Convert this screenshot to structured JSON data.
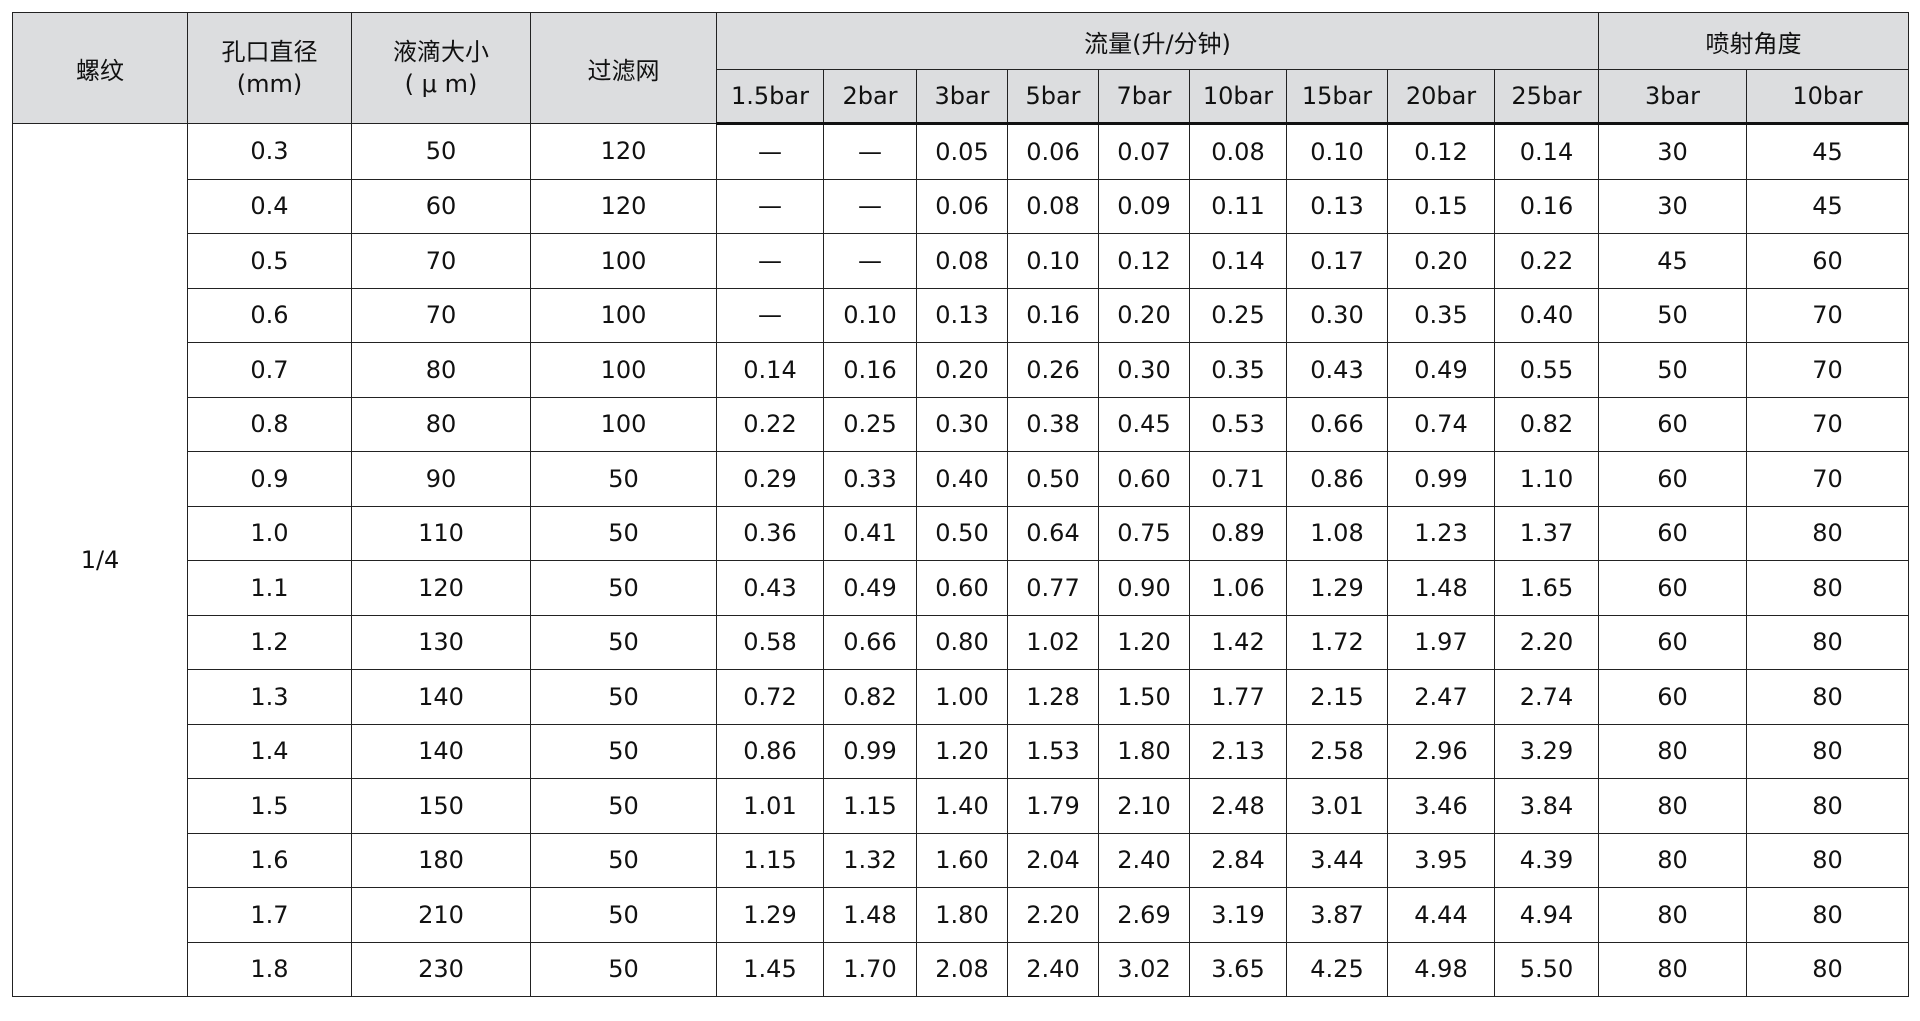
{
  "header": {
    "thread": "螺纹",
    "orifice": "孔口直径",
    "orifice_unit": "(mm)",
    "droplet": "液滴大小",
    "droplet_unit": "( μ m)",
    "filter": "过滤网",
    "flow": "流量(升/分钟)",
    "angle": "喷射角度",
    "flow_pressures": [
      "1.5bar",
      "2bar",
      "3bar",
      "5bar",
      "7bar",
      "10bar",
      "15bar",
      "20bar",
      "25bar"
    ],
    "angle_pressures": [
      "3bar",
      "10bar"
    ]
  },
  "thread_value": "1/4",
  "rows": [
    [
      "0.3",
      "50",
      "120",
      "—",
      "—",
      "0.05",
      "0.06",
      "0.07",
      "0.08",
      "0.10",
      "0.12",
      "0.14",
      "30",
      "45"
    ],
    [
      "0.4",
      "60",
      "120",
      "—",
      "—",
      "0.06",
      "0.08",
      "0.09",
      "0.11",
      "0.13",
      "0.15",
      "0.16",
      "30",
      "45"
    ],
    [
      "0.5",
      "70",
      "100",
      "—",
      "—",
      "0.08",
      "0.10",
      "0.12",
      "0.14",
      "0.17",
      "0.20",
      "0.22",
      "45",
      "60"
    ],
    [
      "0.6",
      "70",
      "100",
      "—",
      "0.10",
      "0.13",
      "0.16",
      "0.20",
      "0.25",
      "0.30",
      "0.35",
      "0.40",
      "50",
      "70"
    ],
    [
      "0.7",
      "80",
      "100",
      "0.14",
      "0.16",
      "0.20",
      "0.26",
      "0.30",
      "0.35",
      "0.43",
      "0.49",
      "0.55",
      "50",
      "70"
    ],
    [
      "0.8",
      "80",
      "100",
      "0.22",
      "0.25",
      "0.30",
      "0.38",
      "0.45",
      "0.53",
      "0.66",
      "0.74",
      "0.82",
      "60",
      "70"
    ],
    [
      "0.9",
      "90",
      "50",
      "0.29",
      "0.33",
      "0.40",
      "0.50",
      "0.60",
      "0.71",
      "0.86",
      "0.99",
      "1.10",
      "60",
      "70"
    ],
    [
      "1.0",
      "110",
      "50",
      "0.36",
      "0.41",
      "0.50",
      "0.64",
      "0.75",
      "0.89",
      "1.08",
      "1.23",
      "1.37",
      "60",
      "80"
    ],
    [
      "1.1",
      "120",
      "50",
      "0.43",
      "0.49",
      "0.60",
      "0.77",
      "0.90",
      "1.06",
      "1.29",
      "1.48",
      "1.65",
      "60",
      "80"
    ],
    [
      "1.2",
      "130",
      "50",
      "0.58",
      "0.66",
      "0.80",
      "1.02",
      "1.20",
      "1.42",
      "1.72",
      "1.97",
      "2.20",
      "60",
      "80"
    ],
    [
      "1.3",
      "140",
      "50",
      "0.72",
      "0.82",
      "1.00",
      "1.28",
      "1.50",
      "1.77",
      "2.15",
      "2.47",
      "2.74",
      "60",
      "80"
    ],
    [
      "1.4",
      "140",
      "50",
      "0.86",
      "0.99",
      "1.20",
      "1.53",
      "1.80",
      "2.13",
      "2.58",
      "2.96",
      "3.29",
      "80",
      "80"
    ],
    [
      "1.5",
      "150",
      "50",
      "1.01",
      "1.15",
      "1.40",
      "1.79",
      "2.10",
      "2.48",
      "3.01",
      "3.46",
      "3.84",
      "80",
      "80"
    ],
    [
      "1.6",
      "180",
      "50",
      "1.15",
      "1.32",
      "1.60",
      "2.04",
      "2.40",
      "2.84",
      "3.44",
      "3.95",
      "4.39",
      "80",
      "80"
    ],
    [
      "1.7",
      "210",
      "50",
      "1.29",
      "1.48",
      "1.80",
      "2.20",
      "2.69",
      "3.19",
      "3.87",
      "4.44",
      "4.94",
      "80",
      "80"
    ],
    [
      "1.8",
      "230",
      "50",
      "1.45",
      "1.70",
      "2.08",
      "2.40",
      "3.02",
      "3.65",
      "4.25",
      "4.98",
      "5.50",
      "80",
      "80"
    ]
  ]
}
